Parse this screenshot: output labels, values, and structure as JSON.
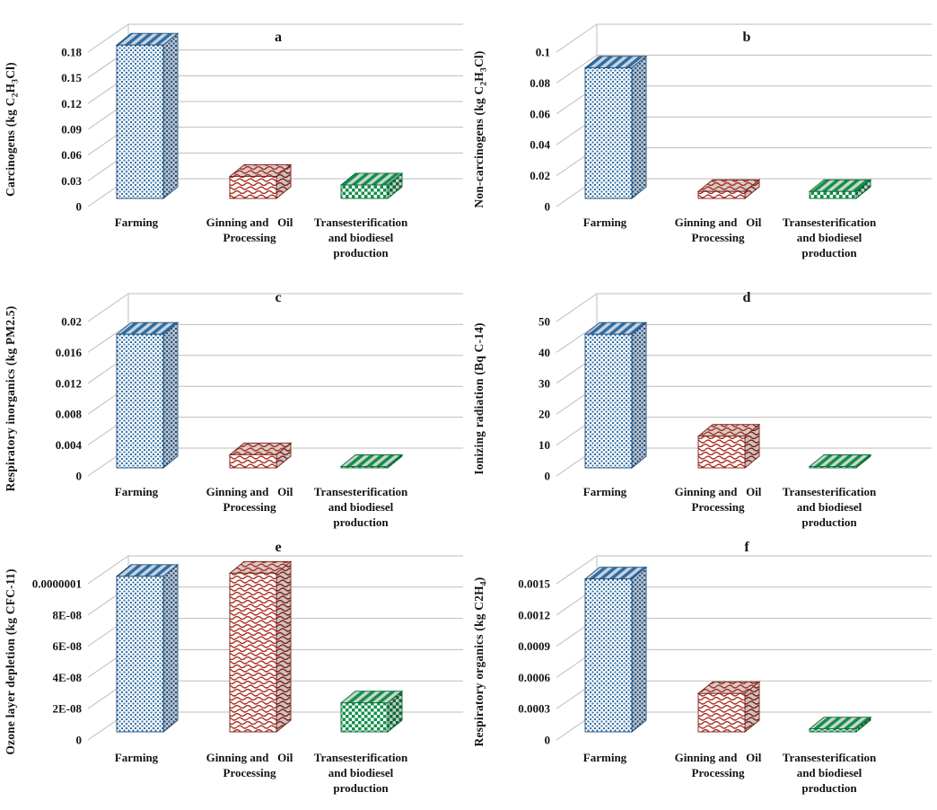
{
  "figure": {
    "description": "Six-panel 3D bar chart figure of life-cycle impact categories by production stage",
    "background": "#FFFFFF"
  },
  "colors": {
    "farming": "#2E6EA6",
    "farming_dark": "#1E4E79",
    "farming_side_bg": "#B9C3CF",
    "farming_top_bg": "#C9D2DB",
    "ginning": "#A82C1F",
    "ginning_dark": "#7A1E14",
    "ginning_side_bg": "#CDC2C0",
    "ginning_top_bg": "#D6CCCA",
    "trans": "#12904A",
    "trans_dark": "#0A6A35",
    "trans_side_bg": "#BFCAC2",
    "trans_top_bg": "#CAD4CC",
    "gridline": "#BDBDBD",
    "text": "#141414",
    "background": "#FFFFFF"
  },
  "series_patterns": [
    {
      "name": "Farming",
      "pattern": "blue-divot-speckle",
      "color": "#2E6EA6"
    },
    {
      "name": "Ginning and Oil Processing",
      "pattern": "red-shingle-scales",
      "color": "#A82C1F"
    },
    {
      "name": "Transesterification and biodiesel production",
      "pattern": "green-checkerboard",
      "color": "#12904A"
    }
  ],
  "categories": [
    {
      "name": "Farming",
      "lines": [
        "Farming"
      ]
    },
    {
      "name": "Ginning and Oil Processing",
      "lines": [
        "Ginning and   Oil",
        "Processing"
      ]
    },
    {
      "name": "Transesterification and biodiesel production",
      "lines": [
        "Transesterification",
        "and biodiesel",
        "production"
      ]
    }
  ],
  "chart_data": [
    {
      "type": "bar",
      "panel": "a",
      "ylabel": "Carcinogens (kg C2H3Cl)",
      "ylabel_segments": [
        {
          "t": "Carcinogens (kg C"
        },
        {
          "t": "2",
          "sub": true
        },
        {
          "t": "H"
        },
        {
          "t": "3",
          "sub": true
        },
        {
          "t": "Cl)"
        }
      ],
      "categories": [
        "Farming",
        "Ginning and Oil Processing",
        "Transesterification and biodiesel production"
      ],
      "values": [
        0.185,
        0.032,
        0.022
      ],
      "ylim": [
        0,
        0.18
      ],
      "grid": true,
      "legend": false,
      "yticks": [
        {
          "label": "0",
          "value": 0
        },
        {
          "label": "0.03",
          "value": 0.03
        },
        {
          "label": "0.06",
          "value": 0.06
        },
        {
          "label": "0.09",
          "value": 0.09
        },
        {
          "label": "0.12",
          "value": 0.12
        },
        {
          "label": "0.15",
          "value": 0.15
        },
        {
          "label": "0.18",
          "value": 0.18
        }
      ]
    },
    {
      "type": "bar",
      "panel": "b",
      "ylabel": "Non-carcinogens (kg C2H3Cl)",
      "ylabel_segments": [
        {
          "t": "Non-carcinogens (kg C"
        },
        {
          "t": "2",
          "sub": true
        },
        {
          "t": "H"
        },
        {
          "t": "3",
          "sub": true
        },
        {
          "t": "Cl)"
        }
      ],
      "categories": [
        "Farming",
        "Ginning and Oil Processing",
        "Transesterification and biodiesel production"
      ],
      "values": [
        0.088,
        0.008,
        0.008
      ],
      "ylim": [
        0,
        0.1
      ],
      "grid": true,
      "legend": false,
      "yticks": [
        {
          "label": "0",
          "value": 0
        },
        {
          "label": "0.02",
          "value": 0.02
        },
        {
          "label": "0.04",
          "value": 0.04
        },
        {
          "label": "0.06",
          "value": 0.06
        },
        {
          "label": "0.08",
          "value": 0.08
        },
        {
          "label": "0.1",
          "value": 0.1
        }
      ]
    },
    {
      "type": "bar",
      "panel": "c",
      "ylabel": "Respiratory inorganics (kg PM2.5)",
      "ylabel_segments": [
        {
          "t": "Respiratory inorganics (kg PM2.5)"
        }
      ],
      "categories": [
        "Farming",
        "Ginning and Oil Processing",
        "Transesterification and biodiesel production"
      ],
      "values": [
        0.018,
        0.0024,
        0.0003
      ],
      "ylim": [
        0,
        0.02
      ],
      "grid": true,
      "legend": false,
      "yticks": [
        {
          "label": "0",
          "value": 0
        },
        {
          "label": "0.004",
          "value": 0.004
        },
        {
          "label": "0.008",
          "value": 0.008
        },
        {
          "label": "0.012",
          "value": 0.012
        },
        {
          "label": "0.016",
          "value": 0.016
        },
        {
          "label": "0.02",
          "value": 0.02
        }
      ]
    },
    {
      "type": "bar",
      "panel": "d",
      "ylabel": "Ionizing radiation (Bq C-14)",
      "ylabel_segments": [
        {
          "t": "Ionizing radiation (Bq C-14)"
        }
      ],
      "categories": [
        "Farming",
        "Ginning and Oil Processing",
        "Transesterification and biodiesel production"
      ],
      "values": [
        45,
        12,
        2
      ],
      "ylim": [
        0,
        50
      ],
      "grid": true,
      "legend": false,
      "yticks": [
        {
          "label": "0",
          "value": 0
        },
        {
          "label": "10",
          "value": 10
        },
        {
          "label": "20",
          "value": 20
        },
        {
          "label": "30",
          "value": 30
        },
        {
          "label": "40",
          "value": 40
        },
        {
          "label": "50",
          "value": 50
        }
      ]
    },
    {
      "type": "bar",
      "panel": "e",
      "ylabel": "Ozone layer depletion (kg CFC-11)",
      "ylabel_segments": [
        {
          "t": "Ozone layer depletion (kg CFC-11)"
        }
      ],
      "categories": [
        "Farming",
        "Ginning and Oil Processing",
        "Transesterification and biodiesel production"
      ],
      "values": [
        1.03e-07,
        1.05e-07,
        2.2e-08
      ],
      "ylim": [
        0,
        1e-07
      ],
      "grid": true,
      "legend": false,
      "yticks": [
        {
          "label": "0",
          "value": 0
        },
        {
          "label": "2E-08",
          "value": 2e-08
        },
        {
          "label": "4E-08",
          "value": 4e-08
        },
        {
          "label": "6E-08",
          "value": 6e-08
        },
        {
          "label": "8E-08",
          "value": 8e-08
        },
        {
          "label": "0.0000001",
          "value": 1e-07
        }
      ]
    },
    {
      "type": "bar",
      "panel": "f",
      "ylabel": "Respiratory organics (kg C2H4)",
      "ylabel_segments": [
        {
          "t": "Respiratory organics (kg C2H"
        },
        {
          "t": "4",
          "sub": true
        },
        {
          "t": ")"
        }
      ],
      "categories": [
        "Farming",
        "Ginning and Oil Processing",
        "Transesterification and biodiesel production"
      ],
      "values": [
        0.00152,
        0.00042,
        8e-05
      ],
      "ylim": [
        0,
        0.0015
      ],
      "grid": true,
      "legend": false,
      "yticks": [
        {
          "label": "0",
          "value": 0
        },
        {
          "label": "0.0003",
          "value": 0.0003
        },
        {
          "label": "0.0006",
          "value": 0.0006
        },
        {
          "label": "0.0009",
          "value": 0.0009
        },
        {
          "label": "0.0012",
          "value": 0.0012
        },
        {
          "label": "0.0015",
          "value": 0.0015
        }
      ]
    }
  ]
}
